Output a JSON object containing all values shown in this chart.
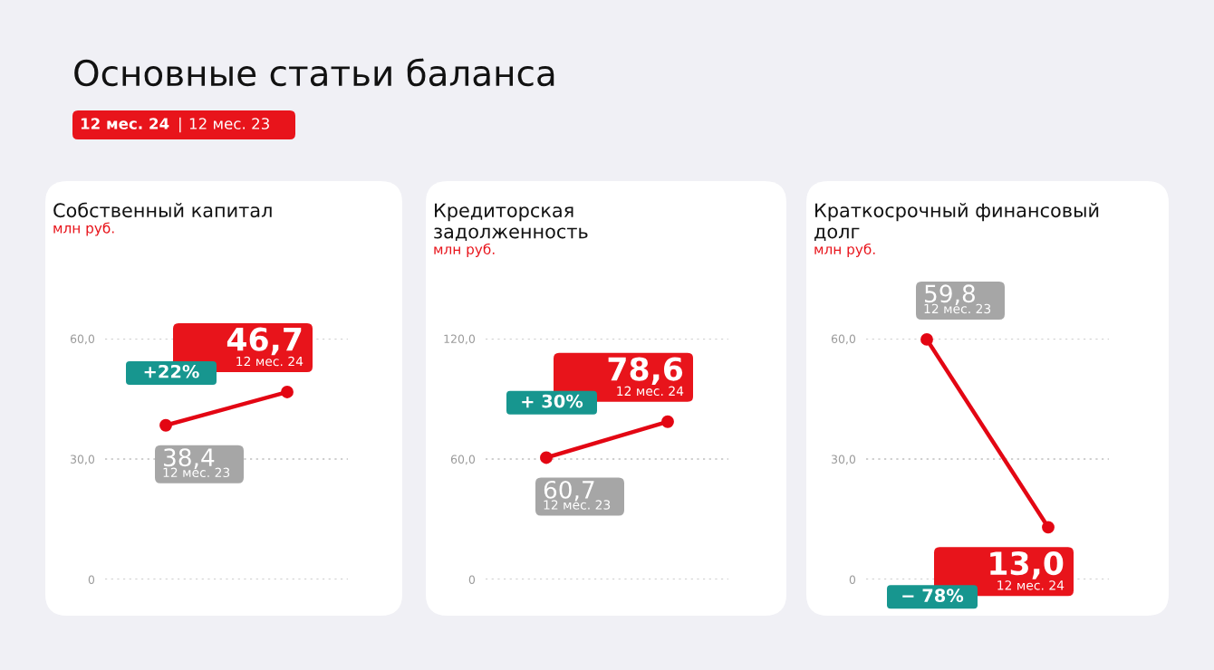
{
  "chart_data": [
    {
      "type": "other",
      "title": "Основные статьи баланса",
      "annotations": [
        "12 мес. 24",
        "|",
        "12 мес. 23"
      ]
    },
    {
      "type": "line",
      "title": "Собственный капитал",
      "subtitle": "млн руб.",
      "categories": [
        null,
        null
      ],
      "values": [
        38.4,
        46.7
      ],
      "color": "#e30613",
      "value_labels": [
        "38,4",
        "46,7"
      ],
      "annotations": [
        "12 мес. 23",
        "12 мес. 24",
        "+22%"
      ],
      "ylim": [
        0,
        60
      ],
      "yticks": [
        0,
        {
          "value": 30,
          "label": "30,0"
        },
        {
          "value": 60,
          "label": "60,0"
        }
      ],
      "grid": "y",
      "marker": "circle",
      "line_style": "solid",
      "tick_labels": "y"
    },
    {
      "type": "line",
      "title": "Кредиторская задолженность",
      "subtitle": "млн руб.",
      "categories": [
        null,
        null
      ],
      "values": [
        60.7,
        78.6
      ],
      "color": "#e30613",
      "value_labels": [
        "60,7",
        "78,6"
      ],
      "annotations": [
        "12 мес. 23",
        "12 мес. 24",
        "+ 30%"
      ],
      "ylim": [
        0,
        120
      ],
      "yticks": [
        0,
        {
          "value": 60,
          "label": "60,0"
        },
        {
          "value": 120,
          "label": "120,0"
        }
      ],
      "grid": "y",
      "marker": "circle",
      "line_style": "solid",
      "tick_labels": "y"
    },
    {
      "type": "line",
      "title": "Краткосрочный финансовый долг",
      "subtitle": "млн руб.",
      "categories": [
        null,
        null
      ],
      "values": [
        59.8,
        13.0
      ],
      "color": "#e30613",
      "value_labels": [
        "59,8",
        "13,0"
      ],
      "annotations": [
        "12 мес. 23",
        "12 мес. 24",
        "− 78%"
      ],
      "ylim": [
        0,
        60
      ],
      "yticks": [
        0,
        {
          "value": 30,
          "label": "30,0"
        },
        {
          "value": 60,
          "label": "60,0"
        }
      ],
      "grid": "y",
      "marker": "circle",
      "line_style": "solid",
      "tick_labels": "y"
    }
  ]
}
